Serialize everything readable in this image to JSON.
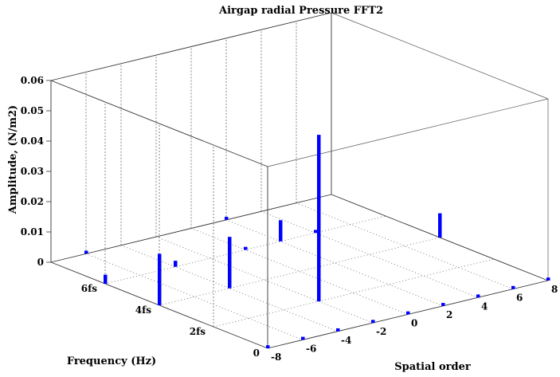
{
  "chart_data": {
    "type": "bar3d",
    "title": "Airgap radial Pressure FFT2",
    "xlabel": "Spatial order",
    "ylabel": "Frequency (Hz)",
    "zlabel": "Amplitude, (N/m2)",
    "xlim": [
      -8,
      8
    ],
    "ylim": [
      0,
      8
    ],
    "zlim": [
      0,
      0.06
    ],
    "x_ticks": [
      "-8",
      "-6",
      "-4",
      "-2",
      "0",
      "2",
      "4",
      "6",
      "8"
    ],
    "y_tick_values": [
      0,
      2,
      4,
      6
    ],
    "y_ticks": [
      "0",
      "2fs",
      "4fs",
      "6fs"
    ],
    "z_ticks": [
      "0",
      "0.01",
      "0.02",
      "0.03",
      "0.04",
      "0.05",
      "0.06"
    ],
    "grid": true,
    "bar_color": "#0000ff",
    "points": [
      {
        "x": -2,
        "y": 2,
        "z": 0.055
      },
      {
        "x": -4,
        "y": 4,
        "z": 0.017
      },
      {
        "x": -8,
        "y": 4,
        "z": 0.017
      },
      {
        "x": 8,
        "y": 4,
        "z": 0.008
      },
      {
        "x": 2,
        "y": 6,
        "z": 0.007
      },
      {
        "x": -8,
        "y": 6,
        "z": 0.003
      },
      {
        "x": -4,
        "y": 6,
        "z": 0.002
      },
      {
        "x": 4,
        "y": 6,
        "z": 0.001
      },
      {
        "x": -8,
        "y": 0,
        "z": 0.001
      },
      {
        "x": -6,
        "y": 0,
        "z": 0.001
      },
      {
        "x": -4,
        "y": 0,
        "z": 0.001
      },
      {
        "x": -2,
        "y": 0,
        "z": 0.001
      },
      {
        "x": 0,
        "y": 0,
        "z": 0.001
      },
      {
        "x": 2,
        "y": 0,
        "z": 0.001
      },
      {
        "x": 4,
        "y": 0,
        "z": 0.001
      },
      {
        "x": 6,
        "y": 0,
        "z": 0.001
      },
      {
        "x": 8,
        "y": 0,
        "z": 0.001
      },
      {
        "x": 0,
        "y": 6,
        "z": 0.001
      },
      {
        "x": 2,
        "y": 8,
        "z": 0.001
      },
      {
        "x": -6,
        "y": 8,
        "z": 0.001
      }
    ]
  }
}
